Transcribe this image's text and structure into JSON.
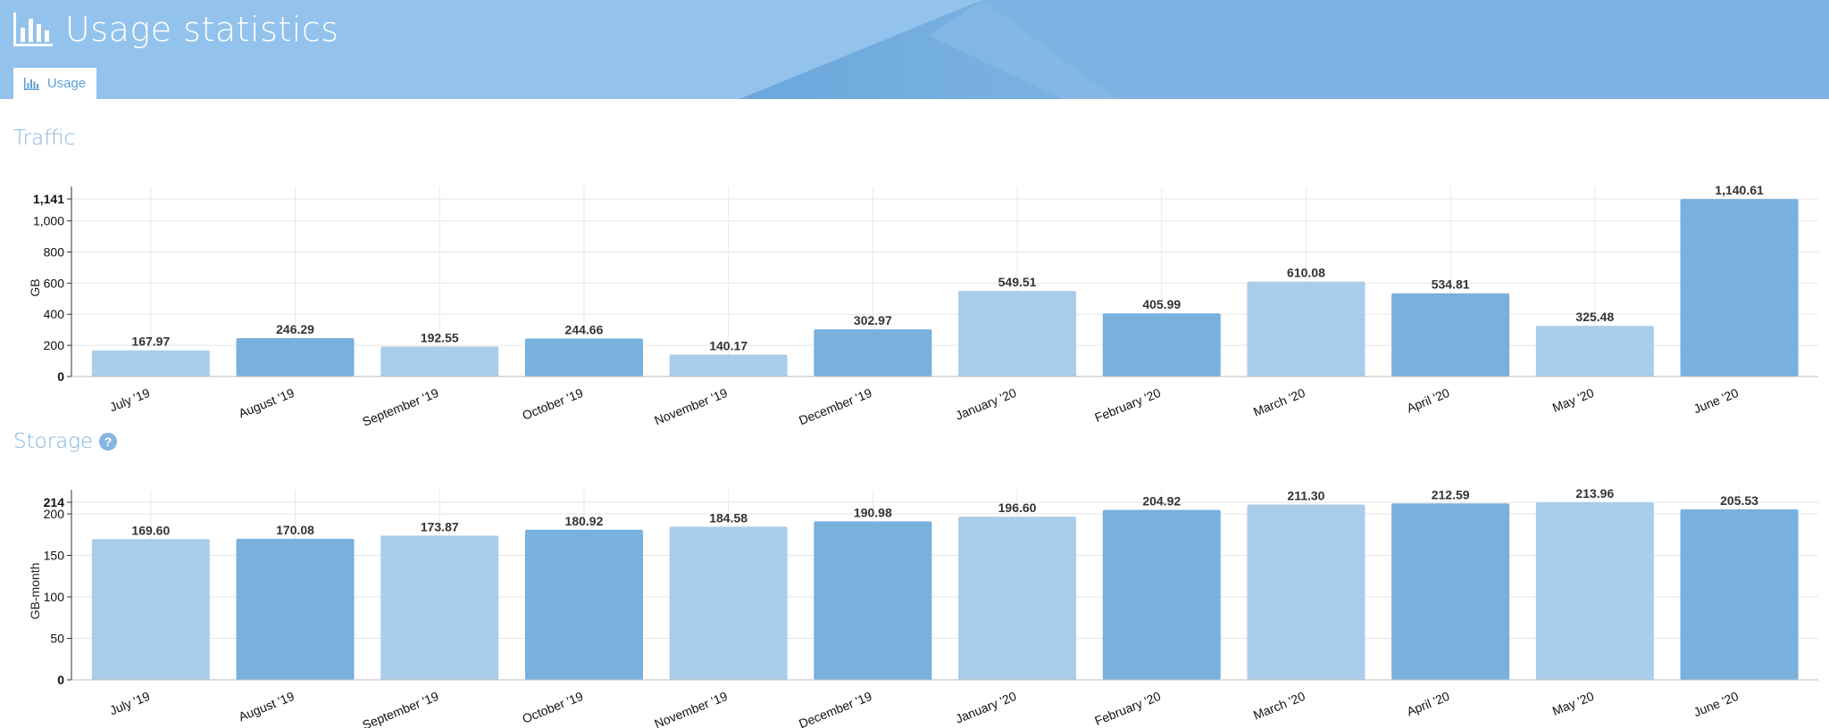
{
  "header": {
    "title": "Usage statistics",
    "title_icon": "bar-chart-icon",
    "tabs": [
      {
        "label": "Usage",
        "icon": "bar-chart-icon",
        "active": true
      }
    ]
  },
  "colors": {
    "header_bg": "#93c3ec",
    "bar_light": "#a9cdeb",
    "bar_dark": "#78b0de",
    "section_title": "#85b6df"
  },
  "sections": {
    "traffic": {
      "title": "Traffic"
    },
    "storage": {
      "title": "Storage",
      "help_icon": "question-circle-icon"
    }
  },
  "chart_data": [
    {
      "type": "bar",
      "title": "Traffic",
      "ylabel": "GB",
      "categories": [
        "July '19",
        "August '19",
        "September '19",
        "October '19",
        "November '19",
        "December '19",
        "January '20",
        "February '20",
        "March '20",
        "April '20",
        "May '20",
        "June '20"
      ],
      "values": [
        167.97,
        246.29,
        192.55,
        244.66,
        140.17,
        302.97,
        549.51,
        405.99,
        610.08,
        534.81,
        325.48,
        1140.61
      ],
      "data_labels": [
        "167.97",
        "246.29",
        "192.55",
        "244.66",
        "140.17",
        "302.97",
        "549.51",
        "405.99",
        "610.08",
        "534.81",
        "325.48",
        "1,140.61"
      ],
      "yticks": [
        0,
        200,
        400,
        600,
        800,
        1000,
        1141
      ],
      "ytick_labels": [
        "0",
        "200",
        "400",
        "600",
        "800",
        "1,000",
        "1,141"
      ],
      "ylim": [
        0,
        1141
      ],
      "grid": true,
      "legend": "none"
    },
    {
      "type": "bar",
      "title": "Storage",
      "ylabel": "GB-month",
      "categories": [
        "July '19",
        "August '19",
        "September '19",
        "October '19",
        "November '19",
        "December '19",
        "January '20",
        "February '20",
        "March '20",
        "April '20",
        "May '20",
        "June '20"
      ],
      "values": [
        169.6,
        170.08,
        173.87,
        180.92,
        184.58,
        190.98,
        196.6,
        204.92,
        211.3,
        212.59,
        213.96,
        205.53
      ],
      "data_labels": [
        "169.60",
        "170.08",
        "173.87",
        "180.92",
        "184.58",
        "190.98",
        "196.60",
        "204.92",
        "211.30",
        "212.59",
        "213.96",
        "205.53"
      ],
      "yticks": [
        0,
        50,
        100,
        150,
        200,
        214
      ],
      "ytick_labels": [
        "0",
        "50",
        "100",
        "150",
        "200",
        "214"
      ],
      "ylim": [
        0,
        214
      ],
      "grid": true,
      "legend": "none"
    }
  ]
}
